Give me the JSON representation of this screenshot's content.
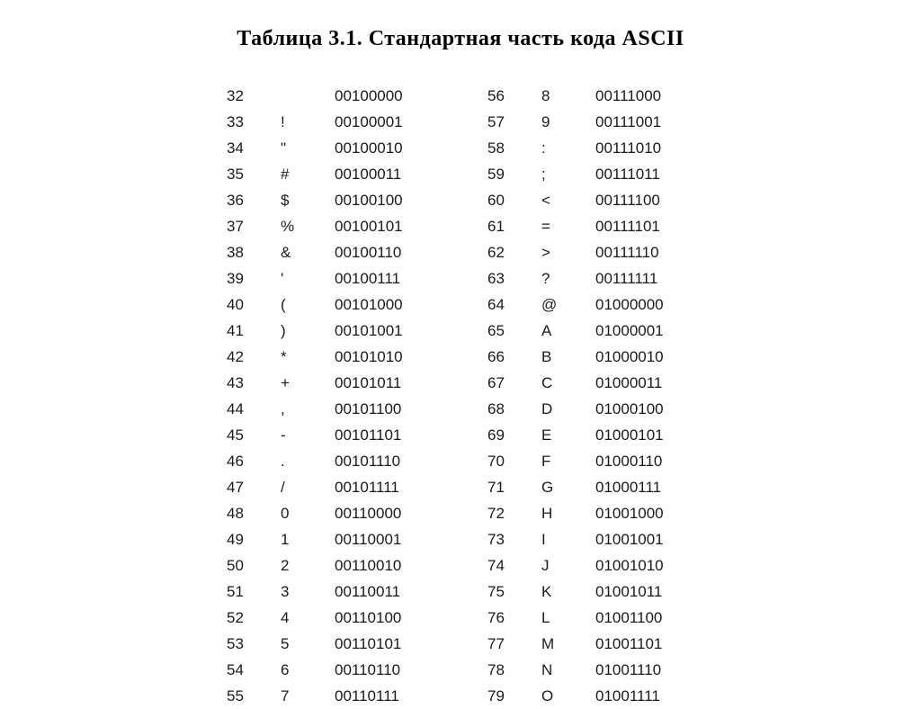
{
  "title": "Таблица 3.1. Стандартная часть кода ASCII",
  "styling": {
    "background_color": "#ffffff",
    "text_color": "#000000",
    "title_fontsize": 24,
    "title_fontweight": "bold",
    "body_fontsize": 17,
    "body_fontfamily": "Arial",
    "col_code_width": 60,
    "col_char_width": 60,
    "col_bin_width": 110,
    "row_padding_v": 4.5,
    "column_gap": 60
  },
  "left": [
    {
      "code": "32",
      "char": "",
      "bin": "00100000"
    },
    {
      "code": "33",
      "char": "!",
      "bin": "00100001"
    },
    {
      "code": "34",
      "char": "\"",
      "bin": "00100010"
    },
    {
      "code": "35",
      "char": "#",
      "bin": "00100011"
    },
    {
      "code": "36",
      "char": "$",
      "bin": "00100100"
    },
    {
      "code": "37",
      "char": "%",
      "bin": "00100101"
    },
    {
      "code": "38",
      "char": "&",
      "bin": "00100110"
    },
    {
      "code": "39",
      "char": "'",
      "bin": "00100111"
    },
    {
      "code": "40",
      "char": "(",
      "bin": "00101000"
    },
    {
      "code": "41",
      "char": ")",
      "bin": "00101001"
    },
    {
      "code": "42",
      "char": "*",
      "bin": "00101010"
    },
    {
      "code": "43",
      "char": "+",
      "bin": "00101011"
    },
    {
      "code": "44",
      "char": ",",
      "bin": "00101100"
    },
    {
      "code": "45",
      "char": "-",
      "bin": "00101101"
    },
    {
      "code": "46",
      "char": ".",
      "bin": "00101110"
    },
    {
      "code": "47",
      "char": "/",
      "bin": "00101111"
    },
    {
      "code": "48",
      "char": "0",
      "bin": "00110000"
    },
    {
      "code": "49",
      "char": "1",
      "bin": "00110001"
    },
    {
      "code": "50",
      "char": "2",
      "bin": "00110010"
    },
    {
      "code": "51",
      "char": "3",
      "bin": "00110011"
    },
    {
      "code": "52",
      "char": "4",
      "bin": "00110100"
    },
    {
      "code": "53",
      "char": "5",
      "bin": "00110101"
    },
    {
      "code": "54",
      "char": "6",
      "bin": "00110110"
    },
    {
      "code": "55",
      "char": "7",
      "bin": "00110111"
    }
  ],
  "right": [
    {
      "code": "56",
      "char": "8",
      "bin": "00111000"
    },
    {
      "code": "57",
      "char": "9",
      "bin": "00111001"
    },
    {
      "code": "58",
      "char": ":",
      "bin": "00111010"
    },
    {
      "code": "59",
      "char": ";",
      "bin": "00111011"
    },
    {
      "code": "60",
      "char": "<",
      "bin": "00111100"
    },
    {
      "code": "61",
      "char": "=",
      "bin": "00111101"
    },
    {
      "code": "62",
      "char": ">",
      "bin": "00111110"
    },
    {
      "code": "63",
      "char": "?",
      "bin": "00111111"
    },
    {
      "code": "64",
      "char": "@",
      "bin": "01000000"
    },
    {
      "code": "65",
      "char": "A",
      "bin": "01000001"
    },
    {
      "code": "66",
      "char": "B",
      "bin": "01000010"
    },
    {
      "code": "67",
      "char": "C",
      "bin": "01000011"
    },
    {
      "code": "68",
      "char": "D",
      "bin": "01000100"
    },
    {
      "code": "69",
      "char": "E",
      "bin": "01000101"
    },
    {
      "code": "70",
      "char": "F",
      "bin": "01000110"
    },
    {
      "code": "71",
      "char": "G",
      "bin": "01000111"
    },
    {
      "code": "72",
      "char": "H",
      "bin": "01001000"
    },
    {
      "code": "73",
      "char": "I",
      "bin": "01001001"
    },
    {
      "code": "74",
      "char": "J",
      "bin": "01001010"
    },
    {
      "code": "75",
      "char": "K",
      "bin": "01001011"
    },
    {
      "code": "76",
      "char": "L",
      "bin": "01001100"
    },
    {
      "code": "77",
      "char": "M",
      "bin": "01001101"
    },
    {
      "code": "78",
      "char": "N",
      "bin": "01001110"
    },
    {
      "code": "79",
      "char": "O",
      "bin": "01001111"
    }
  ]
}
